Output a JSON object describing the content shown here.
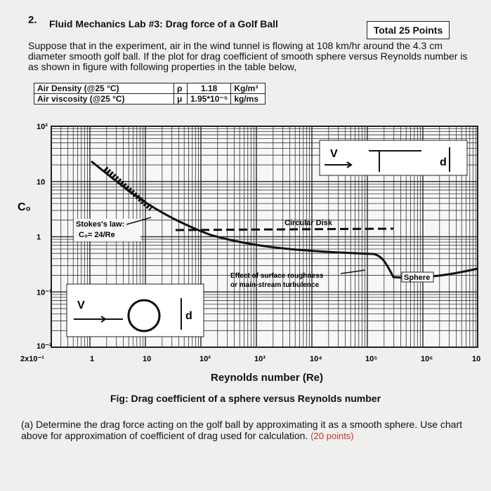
{
  "header": {
    "number": "2.",
    "title": "Fluid Mechanics Lab #3: Drag force of a Golf Ball",
    "points": "Total 25 Points"
  },
  "paragraph": "Suppose that in the experiment, air in the wind tunnel is flowing at 108 km/hr around the 4.3 cm diameter smooth golf ball. If the plot for drag coefficient of smooth sphere versus Reynolds number is as shown in figure with following properties in the table below,",
  "table": {
    "rows": [
      [
        "Air Density (@25 °C)",
        "ρ",
        "1.18",
        "Kg/m³"
      ],
      [
        "Air viscosity (@25 °C)",
        "μ",
        "1.95*10⁻⁵",
        "kg/ms"
      ]
    ]
  },
  "figure": {
    "y_label": "C₀",
    "y_tick_labels": [
      "10²",
      "10",
      "1",
      "10⁻¹",
      "10⁻²"
    ],
    "x_tick_labels": [
      "2x10⁻¹",
      "1",
      "10",
      "10²",
      "10³",
      "10⁴",
      "10⁵",
      "10⁶",
      "10"
    ],
    "inset_top": {
      "v": "V",
      "d": "d"
    },
    "inset_bottom": {
      "v": "V",
      "d": "d"
    },
    "stokes": [
      "Stokes's law:",
      "C₀= 24/Re"
    ],
    "disk": "Circular Disk",
    "roughness": [
      "Effect of surface roughness",
      "or main-stream turbulence"
    ],
    "sphere": "Sphere",
    "x_label": "Reynolds number (Re)",
    "caption": "Fig: Drag coefficient of a sphere versus Reynolds number"
  },
  "question": {
    "text": "(a) Determine the drag force acting on the golf ball by approximating it as a smooth sphere. Use chart above for approximation of coefficient of drag used for calculation.",
    "points": "(20 points)"
  }
}
